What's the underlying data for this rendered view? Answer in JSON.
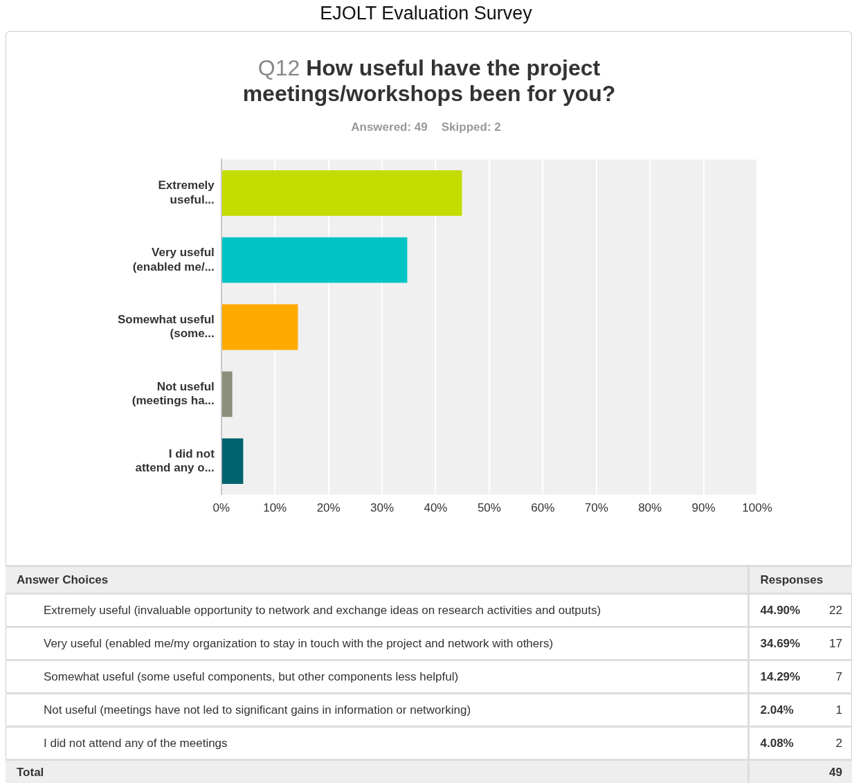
{
  "chart_data": {
    "type": "bar",
    "orientation": "horizontal",
    "title": "EJOLT Evaluation Survey",
    "subtitle": "Q12 How useful have the project meetings/workshops been for you?",
    "categories": [
      "Extremely useful...",
      "Very useful (enabled me/...",
      "Somewhat useful (some...",
      "Not useful (meetings ha...",
      "I did not attend any o..."
    ],
    "values": [
      44.9,
      34.69,
      14.29,
      2.04,
      4.08
    ],
    "colors": [
      "#c5dc00",
      "#00c4c4",
      "#ffaa00",
      "#8c8f7c",
      "#00626e"
    ],
    "xlim": [
      0,
      100
    ],
    "xticks": [
      {
        "value": 0,
        "label": "0%"
      },
      {
        "value": 10,
        "label": "10%"
      },
      {
        "value": 20,
        "label": "20%"
      },
      {
        "value": 30,
        "label": "30%"
      },
      {
        "value": 40,
        "label": "40%"
      },
      {
        "value": 50,
        "label": "50%"
      },
      {
        "value": 60,
        "label": "60%"
      },
      {
        "value": 70,
        "label": "70%"
      },
      {
        "value": 80,
        "label": "80%"
      },
      {
        "value": 90,
        "label": "90%"
      },
      {
        "value": 100,
        "label": "100%"
      }
    ],
    "grid": "x",
    "legend": false,
    "annotations": [
      "Answered: 49",
      "Skipped: 2",
      "Answer Choices",
      "Responses",
      "Extremely useful (invaluable opportunity to network and exchange ideas on research activities and outputs)",
      "44.90%",
      "22",
      "Very useful (enabled me/my organization to stay in touch with the project and network with others)",
      "34.69%",
      "17",
      "Somewhat useful (some useful components, but other components less helpful)",
      "14.29%",
      "7",
      "Not useful (meetings have not led to significant gains in information or networking)",
      "2.04%",
      "1",
      "I did not attend any of the meetings",
      "4.08%",
      "2",
      "Total",
      "49"
    ]
  }
}
